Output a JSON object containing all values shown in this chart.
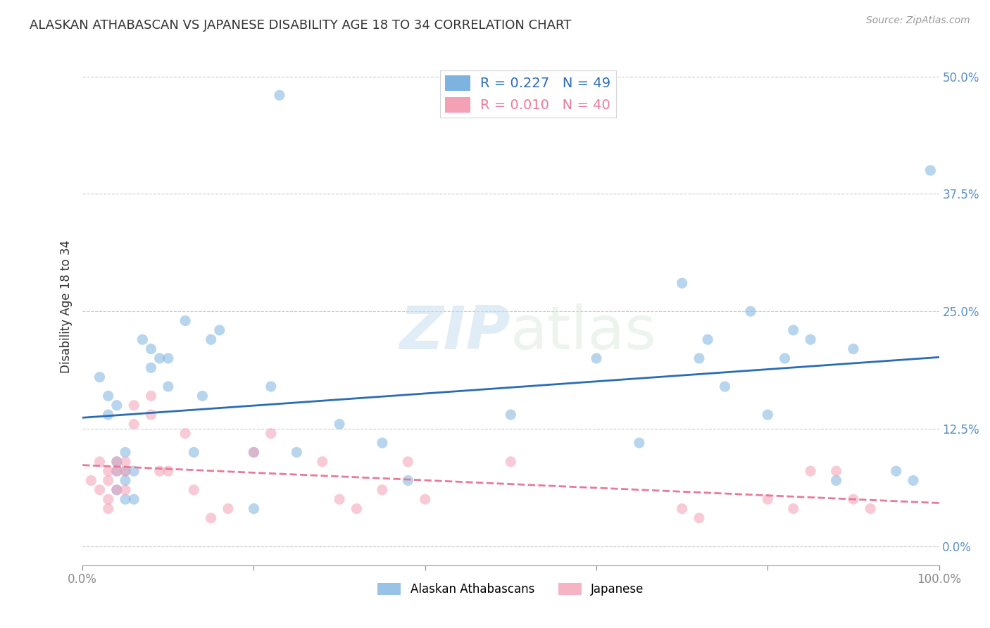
{
  "title": "ALASKAN ATHABASCAN VS JAPANESE DISABILITY AGE 18 TO 34 CORRELATION CHART",
  "source": "Source: ZipAtlas.com",
  "xlabel": "",
  "ylabel": "Disability Age 18 to 34",
  "legend_labels": [
    "Alaskan Athabascans",
    "Japanese"
  ],
  "r_blue": 0.227,
  "n_blue": 49,
  "r_pink": 0.01,
  "n_pink": 40,
  "blue_color": "#7eb3e0",
  "pink_color": "#f4a0b5",
  "blue_line_color": "#2a6db5",
  "pink_line_color": "#e87a99",
  "watermark_zip": "ZIP",
  "watermark_atlas": "atlas",
  "xlim": [
    0,
    1.0
  ],
  "ylim": [
    -0.02,
    0.53
  ],
  "yticks": [
    0.0,
    0.125,
    0.25,
    0.375,
    0.5
  ],
  "ytick_labels": [
    "0.0%",
    "12.5%",
    "25.0%",
    "37.5%",
    "50.0%"
  ],
  "xticks": [
    0.0,
    0.2,
    0.4,
    0.6,
    0.8,
    1.0
  ],
  "xtick_labels": [
    "0.0%",
    "",
    "",
    "",
    "",
    "100.0%"
  ],
  "blue_x": [
    0.02,
    0.03,
    0.03,
    0.04,
    0.04,
    0.04,
    0.04,
    0.05,
    0.05,
    0.05,
    0.05,
    0.06,
    0.06,
    0.07,
    0.08,
    0.08,
    0.09,
    0.1,
    0.1,
    0.12,
    0.13,
    0.14,
    0.15,
    0.16,
    0.2,
    0.2,
    0.22,
    0.23,
    0.25,
    0.3,
    0.35,
    0.38,
    0.5,
    0.6,
    0.65,
    0.7,
    0.72,
    0.73,
    0.75,
    0.78,
    0.8,
    0.82,
    0.83,
    0.85,
    0.88,
    0.9,
    0.95,
    0.97,
    0.99
  ],
  "blue_y": [
    0.18,
    0.16,
    0.14,
    0.15,
    0.09,
    0.08,
    0.06,
    0.1,
    0.08,
    0.07,
    0.05,
    0.08,
    0.05,
    0.22,
    0.21,
    0.19,
    0.2,
    0.17,
    0.2,
    0.24,
    0.1,
    0.16,
    0.22,
    0.23,
    0.1,
    0.04,
    0.17,
    0.48,
    0.1,
    0.13,
    0.11,
    0.07,
    0.14,
    0.2,
    0.11,
    0.28,
    0.2,
    0.22,
    0.17,
    0.25,
    0.14,
    0.2,
    0.23,
    0.22,
    0.07,
    0.21,
    0.08,
    0.07,
    0.4
  ],
  "pink_x": [
    0.01,
    0.02,
    0.02,
    0.03,
    0.03,
    0.03,
    0.03,
    0.04,
    0.04,
    0.04,
    0.05,
    0.05,
    0.05,
    0.06,
    0.06,
    0.08,
    0.08,
    0.09,
    0.1,
    0.12,
    0.13,
    0.15,
    0.17,
    0.2,
    0.22,
    0.28,
    0.3,
    0.32,
    0.35,
    0.38,
    0.4,
    0.5,
    0.7,
    0.72,
    0.8,
    0.83,
    0.85,
    0.88,
    0.9,
    0.92
  ],
  "pink_y": [
    0.07,
    0.09,
    0.06,
    0.08,
    0.07,
    0.05,
    0.04,
    0.09,
    0.08,
    0.06,
    0.09,
    0.08,
    0.06,
    0.15,
    0.13,
    0.16,
    0.14,
    0.08,
    0.08,
    0.12,
    0.06,
    0.03,
    0.04,
    0.1,
    0.12,
    0.09,
    0.05,
    0.04,
    0.06,
    0.09,
    0.05,
    0.09,
    0.04,
    0.03,
    0.05,
    0.04,
    0.08,
    0.08,
    0.05,
    0.04
  ],
  "background_color": "#ffffff",
  "grid_color": "#cccccc",
  "title_color": "#333333",
  "tick_color": "#5a8fc4",
  "marker_size": 120,
  "marker_alpha": 0.55
}
